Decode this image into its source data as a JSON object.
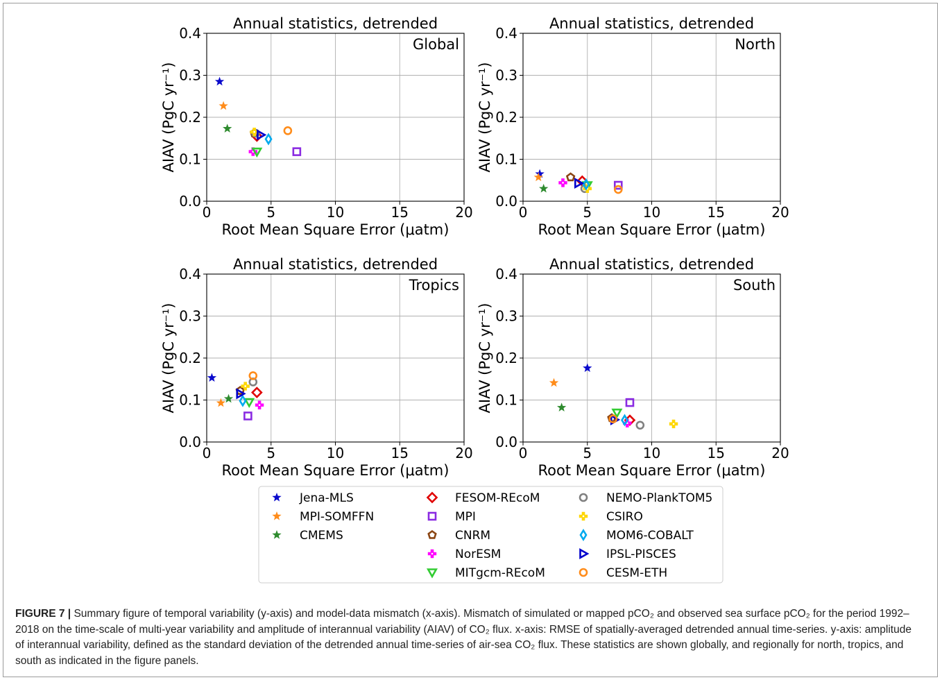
{
  "figure": {
    "caption_label": "FIGURE 7",
    "caption_separator": "|",
    "caption_text": "Summary figure of temporal variability (y-axis) and model-data mismatch (x-axis). Mismatch of simulated or mapped pCO₂ and observed sea surface pCO₂ for the period 1992–2018 on the time-scale of multi-year variability and amplitude of interannual variability (AIAV) of CO₂ flux. x-axis: RMSE of spatially-averaged detrended annual time-series. y-axis: amplitude of interannual variability, defined as the standard deviation of the detrended annual time-series of air-sea CO₂ flux. These statistics are shown globally, and regionally for north, tropics, and south as indicated in the figure panels."
  },
  "legend": [
    {
      "name": "Jena-MLS",
      "marker": "star",
      "color": "#0a0acc"
    },
    {
      "name": "MPI-SOMFFN",
      "marker": "star",
      "color": "#ff8c1a"
    },
    {
      "name": "CMEMS",
      "marker": "star",
      "color": "#2e8b2e"
    },
    {
      "name": "FESOM-REcoM",
      "marker": "diamond",
      "color": "#e00000"
    },
    {
      "name": "MPI",
      "marker": "square",
      "color": "#8a2be2"
    },
    {
      "name": "CNRM",
      "marker": "pentagon",
      "color": "#8b4513"
    },
    {
      "name": "NorESM",
      "marker": "plus",
      "color": "#ff00ff"
    },
    {
      "name": "MITgcm-REcoM",
      "marker": "triangle_down",
      "color": "#33cc33"
    },
    {
      "name": "NEMO-PlankTOM5",
      "marker": "circle",
      "color": "#808080"
    },
    {
      "name": "CSIRO",
      "marker": "plus",
      "color": "#ffd700"
    },
    {
      "name": "MOM6-COBALT",
      "marker": "thin_diamond",
      "color": "#00aaee"
    },
    {
      "name": "IPSL-PISCES",
      "marker": "triangle_right",
      "color": "#0000cc"
    },
    {
      "name": "CESM-ETH",
      "marker": "circle",
      "color": "#ff8c1a"
    }
  ],
  "chart_data": [
    {
      "type": "scatter",
      "title": "Annual statistics, detrended",
      "region": "Global",
      "xlabel": "Root Mean Square Error (μatm)",
      "ylabel": "AIAV (PgC yr⁻¹)",
      "xlim": [
        0,
        20
      ],
      "ylim": [
        0,
        0.4
      ],
      "xticks": [
        "0",
        "5",
        "10",
        "15",
        "20"
      ],
      "yticks": [
        "0.0",
        "0.1",
        "0.2",
        "0.3",
        "0.4"
      ],
      "grid": true,
      "points": [
        {
          "series": "Jena-MLS",
          "x": 1.0,
          "y": 0.285
        },
        {
          "series": "MPI-SOMFFN",
          "x": 1.3,
          "y": 0.227
        },
        {
          "series": "CMEMS",
          "x": 1.6,
          "y": 0.173
        },
        {
          "series": "FESOM-REcoM",
          "x": 3.9,
          "y": 0.155
        },
        {
          "series": "MPI",
          "x": 7.0,
          "y": 0.118
        },
        {
          "series": "CNRM",
          "x": 3.7,
          "y": 0.162
        },
        {
          "series": "NorESM",
          "x": 3.6,
          "y": 0.118
        },
        {
          "series": "MITgcm-REcoM",
          "x": 3.9,
          "y": 0.118
        },
        {
          "series": "NEMO-PlankTOM5",
          "x": 3.8,
          "y": 0.162
        },
        {
          "series": "CSIRO",
          "x": 3.7,
          "y": 0.165
        },
        {
          "series": "MOM6-COBALT",
          "x": 4.8,
          "y": 0.148
        },
        {
          "series": "IPSL-PISCES",
          "x": 4.2,
          "y": 0.158
        },
        {
          "series": "CESM-ETH",
          "x": 6.3,
          "y": 0.168
        }
      ]
    },
    {
      "type": "scatter",
      "title": "Annual statistics, detrended",
      "region": "North",
      "xlabel": "Root Mean Square Error (μatm)",
      "ylabel": "AIAV (PgC yr⁻¹)",
      "xlim": [
        0,
        20
      ],
      "ylim": [
        0,
        0.4
      ],
      "xticks": [
        "0",
        "5",
        "10",
        "15",
        "20"
      ],
      "yticks": [
        "0.0",
        "0.1",
        "0.2",
        "0.3",
        "0.4"
      ],
      "grid": true,
      "points": [
        {
          "series": "Jena-MLS",
          "x": 1.3,
          "y": 0.065
        },
        {
          "series": "MPI-SOMFFN",
          "x": 1.2,
          "y": 0.057
        },
        {
          "series": "CMEMS",
          "x": 1.6,
          "y": 0.03
        },
        {
          "series": "FESOM-REcoM",
          "x": 4.6,
          "y": 0.048
        },
        {
          "series": "MPI",
          "x": 7.4,
          "y": 0.038
        },
        {
          "series": "CNRM",
          "x": 3.7,
          "y": 0.057
        },
        {
          "series": "NorESM",
          "x": 3.1,
          "y": 0.044
        },
        {
          "series": "MITgcm-REcoM",
          "x": 5.0,
          "y": 0.038
        },
        {
          "series": "NEMO-PlankTOM5",
          "x": 4.8,
          "y": 0.03
        },
        {
          "series": "CSIRO",
          "x": 5.0,
          "y": 0.03
        },
        {
          "series": "MOM6-COBALT",
          "x": 4.9,
          "y": 0.04
        },
        {
          "series": "IPSL-PISCES",
          "x": 4.3,
          "y": 0.043
        },
        {
          "series": "CESM-ETH",
          "x": 7.4,
          "y": 0.028
        }
      ]
    },
    {
      "type": "scatter",
      "title": "Annual statistics, detrended",
      "region": "Tropics",
      "xlabel": "Root Mean Square Error (μatm)",
      "ylabel": "AIAV (PgC yr⁻¹)",
      "xlim": [
        0,
        20
      ],
      "ylim": [
        0,
        0.4
      ],
      "xticks": [
        "0",
        "5",
        "10",
        "15",
        "20"
      ],
      "yticks": [
        "0.0",
        "0.1",
        "0.2",
        "0.3",
        "0.4"
      ],
      "grid": true,
      "points": [
        {
          "series": "Jena-MLS",
          "x": 0.4,
          "y": 0.153
        },
        {
          "series": "MPI-SOMFFN",
          "x": 1.1,
          "y": 0.093
        },
        {
          "series": "CMEMS",
          "x": 1.7,
          "y": 0.103
        },
        {
          "series": "FESOM-REcoM",
          "x": 3.9,
          "y": 0.118
        },
        {
          "series": "MPI",
          "x": 3.2,
          "y": 0.062
        },
        {
          "series": "CNRM",
          "x": 2.6,
          "y": 0.122
        },
        {
          "series": "NorESM",
          "x": 4.1,
          "y": 0.088
        },
        {
          "series": "MITgcm-REcoM",
          "x": 3.3,
          "y": 0.095
        },
        {
          "series": "NEMO-PlankTOM5",
          "x": 3.6,
          "y": 0.143
        },
        {
          "series": "CSIRO",
          "x": 3.0,
          "y": 0.133
        },
        {
          "series": "MOM6-COBALT",
          "x": 2.8,
          "y": 0.098
        },
        {
          "series": "IPSL-PISCES",
          "x": 2.6,
          "y": 0.115
        },
        {
          "series": "CESM-ETH",
          "x": 3.6,
          "y": 0.158
        }
      ]
    },
    {
      "type": "scatter",
      "title": "Annual statistics, detrended",
      "region": "South",
      "xlabel": "Root Mean Square Error (μatm)",
      "ylabel": "AIAV (PgC yr⁻¹)",
      "xlim": [
        0,
        20
      ],
      "ylim": [
        0,
        0.4
      ],
      "xticks": [
        "0",
        "5",
        "10",
        "15",
        "20"
      ],
      "yticks": [
        "0.0",
        "0.1",
        "0.2",
        "0.3",
        "0.4"
      ],
      "grid": true,
      "points": [
        {
          "series": "Jena-MLS",
          "x": 5.0,
          "y": 0.176
        },
        {
          "series": "MPI-SOMFFN",
          "x": 2.4,
          "y": 0.141
        },
        {
          "series": "CMEMS",
          "x": 3.0,
          "y": 0.082
        },
        {
          "series": "FESOM-REcoM",
          "x": 8.3,
          "y": 0.052
        },
        {
          "series": "MPI",
          "x": 8.3,
          "y": 0.094
        },
        {
          "series": "CNRM",
          "x": 6.9,
          "y": 0.057
        },
        {
          "series": "NorESM",
          "x": 8.1,
          "y": 0.045
        },
        {
          "series": "MITgcm-REcoM",
          "x": 7.3,
          "y": 0.07
        },
        {
          "series": "NEMO-PlankTOM5",
          "x": 9.1,
          "y": 0.04
        },
        {
          "series": "CSIRO",
          "x": 11.7,
          "y": 0.043
        },
        {
          "series": "MOM6-COBALT",
          "x": 7.9,
          "y": 0.052
        },
        {
          "series": "IPSL-PISCES",
          "x": 7.1,
          "y": 0.053
        },
        {
          "series": "CESM-ETH",
          "x": 7.0,
          "y": 0.055
        }
      ]
    }
  ]
}
